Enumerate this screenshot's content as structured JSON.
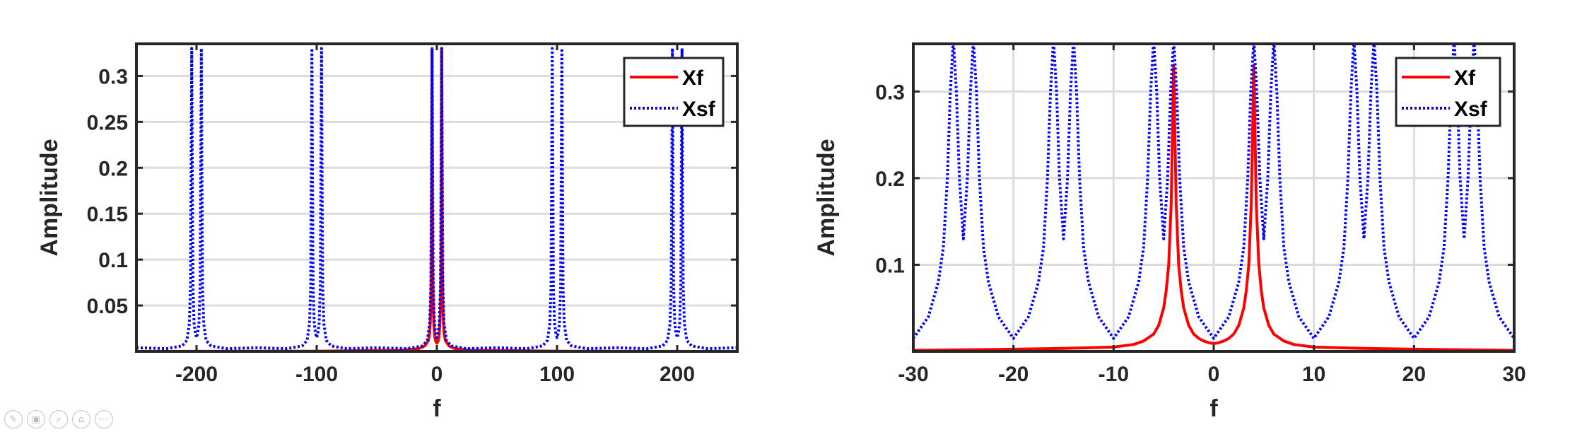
{
  "toolbar": {
    "icons": [
      "brush-icon",
      "save-icon",
      "zoom-icon",
      "home-icon",
      "more-icon"
    ],
    "glyphs": [
      "✎",
      "▣",
      "⌕",
      "⌂",
      "⋯"
    ]
  },
  "chart_data": [
    {
      "type": "line",
      "title": "",
      "xlabel": "f",
      "ylabel": "Amplitude",
      "xlim": [
        -250,
        250
      ],
      "ylim": [
        0,
        0.335
      ],
      "xticks": [
        -200,
        -100,
        0,
        100,
        200
      ],
      "xtick_labels": [
        "-200",
        "-100",
        "0",
        "100",
        "200"
      ],
      "yticks": [
        0.05,
        0.1,
        0.15,
        0.2,
        0.25,
        0.3
      ],
      "ytick_labels": [
        "0.05",
        "0.1",
        "0.15",
        "0.2",
        "0.25",
        "0.3"
      ],
      "grid": "horizontal",
      "legend_position": "top-right",
      "series": [
        {
          "name": "Xf",
          "color": "#ff0000",
          "style": "solid",
          "x": [
            -250,
            -100,
            -30,
            -15,
            -10,
            -7,
            -6,
            -5.5,
            -5,
            -4.5,
            -4,
            -3.5,
            -3,
            -2.5,
            -2,
            -1.5,
            -1,
            0,
            1,
            1.5,
            2,
            2.5,
            3,
            3.5,
            4,
            4.5,
            5,
            5.5,
            6,
            7,
            10,
            15,
            30,
            100,
            250
          ],
          "y": [
            0.0,
            0.0002,
            0.0012,
            0.003,
            0.006,
            0.012,
            0.02,
            0.03,
            0.05,
            0.1,
            0.33,
            0.1,
            0.05,
            0.03,
            0.02,
            0.014,
            0.011,
            0.009,
            0.011,
            0.014,
            0.02,
            0.03,
            0.05,
            0.1,
            0.33,
            0.1,
            0.05,
            0.03,
            0.02,
            0.012,
            0.006,
            0.003,
            0.0012,
            0.0002,
            0.0
          ]
        },
        {
          "name": "Xsf",
          "color": "#0000ff",
          "style": "dotted",
          "x": [
            -250,
            -225,
            -212,
            -208,
            -206,
            -205,
            -204,
            -203,
            -202,
            -201,
            -200,
            -199,
            -198,
            -197,
            -196,
            -195,
            -194,
            -192,
            -188,
            -175,
            -150,
            -125,
            -112,
            -108,
            -106,
            -105,
            -104,
            -103,
            -102,
            -101,
            -100,
            -99,
            -98,
            -97,
            -96,
            -95,
            -94,
            -92,
            -88,
            -75,
            -50,
            -25,
            -12,
            -8,
            -6,
            -5,
            -4,
            -3,
            -2,
            -1,
            0,
            1,
            2,
            3,
            4,
            5,
            6,
            8,
            12,
            25,
            50,
            75,
            88,
            92,
            94,
            95,
            96,
            97,
            98,
            99,
            100,
            101,
            102,
            103,
            104,
            105,
            106,
            108,
            112,
            125,
            150,
            175,
            188,
            192,
            194,
            195,
            196,
            197,
            198,
            199,
            200,
            201,
            202,
            203,
            204,
            205,
            206,
            208,
            212,
            225,
            250
          ],
          "y": [
            0.004,
            0.003,
            0.006,
            0.012,
            0.03,
            0.07,
            0.33,
            0.07,
            0.03,
            0.02,
            0.015,
            0.02,
            0.03,
            0.07,
            0.33,
            0.07,
            0.03,
            0.012,
            0.006,
            0.003,
            0.004,
            0.003,
            0.006,
            0.012,
            0.03,
            0.07,
            0.33,
            0.07,
            0.03,
            0.02,
            0.015,
            0.02,
            0.03,
            0.07,
            0.33,
            0.07,
            0.03,
            0.012,
            0.006,
            0.003,
            0.004,
            0.003,
            0.006,
            0.012,
            0.03,
            0.07,
            0.33,
            0.07,
            0.03,
            0.02,
            0.015,
            0.02,
            0.03,
            0.07,
            0.33,
            0.07,
            0.03,
            0.012,
            0.006,
            0.003,
            0.004,
            0.003,
            0.006,
            0.012,
            0.03,
            0.07,
            0.33,
            0.07,
            0.03,
            0.02,
            0.015,
            0.02,
            0.03,
            0.07,
            0.33,
            0.07,
            0.03,
            0.012,
            0.006,
            0.003,
            0.004,
            0.003,
            0.006,
            0.012,
            0.03,
            0.07,
            0.33,
            0.07,
            0.03,
            0.02,
            0.015,
            0.02,
            0.03,
            0.07,
            0.33,
            0.07,
            0.03,
            0.012,
            0.006,
            0.003,
            0.004
          ]
        }
      ]
    },
    {
      "type": "line",
      "title": "",
      "xlabel": "f",
      "ylabel": "Amplitude",
      "xlim": [
        -30,
        30
      ],
      "ylim": [
        0,
        0.355
      ],
      "xticks": [
        -30,
        -20,
        -10,
        0,
        10,
        20,
        30
      ],
      "xtick_labels": [
        "-30",
        "-20",
        "-10",
        "0",
        "10",
        "20",
        "30"
      ],
      "yticks": [
        0.1,
        0.2,
        0.3
      ],
      "ytick_labels": [
        "0.1",
        "0.2",
        "0.3"
      ],
      "grid": "both",
      "legend_position": "top-right",
      "series": [
        {
          "name": "Xf",
          "color": "#ff0000",
          "style": "solid",
          "x": [
            -30,
            -20,
            -15,
            -10,
            -8,
            -7,
            -6,
            -5.5,
            -5,
            -4.75,
            -4.5,
            -4.25,
            -4,
            -3.75,
            -3.5,
            -3.25,
            -3,
            -2.5,
            -2,
            -1.5,
            -1,
            -0.5,
            0,
            0.5,
            1,
            1.5,
            2,
            2.5,
            3,
            3.25,
            3.5,
            3.75,
            4,
            4.25,
            4.5,
            4.75,
            5,
            5.5,
            6,
            7,
            8,
            10,
            15,
            20,
            30
          ],
          "y": [
            0.0012,
            0.0025,
            0.0035,
            0.005,
            0.008,
            0.012,
            0.02,
            0.03,
            0.05,
            0.07,
            0.1,
            0.17,
            0.33,
            0.17,
            0.1,
            0.07,
            0.05,
            0.03,
            0.02,
            0.015,
            0.012,
            0.01,
            0.009,
            0.01,
            0.012,
            0.015,
            0.02,
            0.03,
            0.05,
            0.07,
            0.1,
            0.17,
            0.33,
            0.17,
            0.1,
            0.07,
            0.05,
            0.03,
            0.02,
            0.012,
            0.008,
            0.005,
            0.0035,
            0.0025,
            0.0012
          ]
        },
        {
          "name": "Xsf",
          "color": "#0000ff",
          "style": "dotted",
          "x": [
            -30,
            -28.5,
            -27.5,
            -27,
            -26.6,
            -26.3,
            -26,
            -25.7,
            -25.4,
            -25,
            -24.6,
            -24.3,
            -24,
            -23.7,
            -23.4,
            -23,
            -22.5,
            -21.5,
            -20,
            -18.5,
            -17.5,
            -17,
            -16.6,
            -16.3,
            -16,
            -15.7,
            -15.4,
            -15,
            -14.6,
            -14.3,
            -14,
            -13.7,
            -13.4,
            -13,
            -12.5,
            -11.5,
            -10,
            -8.5,
            -7.5,
            -7,
            -6.6,
            -6.3,
            -6,
            -5.7,
            -5.4,
            -5,
            -4.6,
            -4.3,
            -4,
            -3.7,
            -3.4,
            -3,
            -2.5,
            -1.5,
            0,
            1.5,
            2.5,
            3,
            3.4,
            3.7,
            4,
            4.3,
            4.6,
            5,
            5.4,
            5.7,
            6,
            6.3,
            6.6,
            7,
            7.5,
            8.5,
            10,
            11.5,
            12.5,
            13,
            13.4,
            13.7,
            14,
            14.3,
            14.6,
            15,
            15.4,
            15.7,
            16,
            16.3,
            16.6,
            17,
            17.5,
            18.5,
            20,
            21.5,
            22.5,
            23,
            23.4,
            23.7,
            24,
            24.3,
            24.6,
            25,
            25.4,
            25.7,
            26,
            26.3,
            26.6,
            27,
            27.5,
            28.5,
            30
          ],
          "y": [
            0.015,
            0.04,
            0.08,
            0.12,
            0.2,
            0.3,
            0.36,
            0.3,
            0.2,
            0.13,
            0.2,
            0.3,
            0.36,
            0.3,
            0.2,
            0.12,
            0.08,
            0.04,
            0.015,
            0.04,
            0.08,
            0.12,
            0.2,
            0.3,
            0.36,
            0.3,
            0.2,
            0.13,
            0.2,
            0.3,
            0.36,
            0.3,
            0.2,
            0.12,
            0.08,
            0.04,
            0.015,
            0.04,
            0.08,
            0.12,
            0.2,
            0.3,
            0.36,
            0.3,
            0.2,
            0.13,
            0.2,
            0.3,
            0.36,
            0.3,
            0.2,
            0.12,
            0.08,
            0.04,
            0.015,
            0.04,
            0.08,
            0.12,
            0.2,
            0.3,
            0.36,
            0.3,
            0.2,
            0.13,
            0.2,
            0.3,
            0.36,
            0.3,
            0.2,
            0.12,
            0.08,
            0.04,
            0.015,
            0.04,
            0.08,
            0.12,
            0.2,
            0.3,
            0.36,
            0.3,
            0.2,
            0.13,
            0.2,
            0.3,
            0.36,
            0.3,
            0.2,
            0.12,
            0.08,
            0.04,
            0.015,
            0.04,
            0.08,
            0.12,
            0.2,
            0.3,
            0.36,
            0.3,
            0.2,
            0.13,
            0.2,
            0.3,
            0.36,
            0.3,
            0.2,
            0.12,
            0.08,
            0.04,
            0.015
          ]
        }
      ]
    }
  ]
}
